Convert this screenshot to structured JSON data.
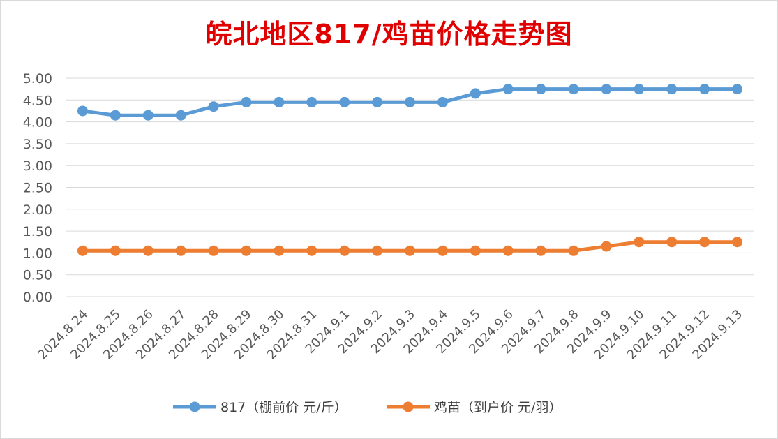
{
  "chart_data": {
    "type": "line",
    "title": "皖北地区817/鸡苗价格走势图",
    "xlabel": "",
    "ylabel": "",
    "ylim": [
      0,
      5
    ],
    "yticks": [
      "0.00",
      "0.50",
      "1.00",
      "1.50",
      "2.00",
      "2.50",
      "3.00",
      "3.50",
      "4.00",
      "4.50",
      "5.00"
    ],
    "grid": true,
    "legend_position": "bottom",
    "categories": [
      "2024.8.24",
      "2024.8.25",
      "2024.8.26",
      "2024.8.27",
      "2024.8.28",
      "2024.8.29",
      "2024.8.30",
      "2024.8.31",
      "2024.9.1",
      "2024.9.2",
      "2024.9.3",
      "2024.9.4",
      "2024.9.5",
      "2024.9.6",
      "2024.9.7",
      "2024.9.8",
      "2024.9.9",
      "2024.9.10",
      "2024.9.11",
      "2024.9.12",
      "2024.9.13"
    ],
    "series": [
      {
        "name": "817（棚前价 元/斤）",
        "color": "#5b9bd5",
        "values": [
          4.25,
          4.15,
          4.15,
          4.15,
          4.35,
          4.45,
          4.45,
          4.45,
          4.45,
          4.45,
          4.45,
          4.45,
          4.65,
          4.75,
          4.75,
          4.75,
          4.75,
          4.75,
          4.75,
          4.75,
          4.75
        ]
      },
      {
        "name": "鸡苗（到户价 元/羽）",
        "color": "#ed7d31",
        "values": [
          1.05,
          1.05,
          1.05,
          1.05,
          1.05,
          1.05,
          1.05,
          1.05,
          1.05,
          1.05,
          1.05,
          1.05,
          1.05,
          1.05,
          1.05,
          1.05,
          1.15,
          1.25,
          1.25,
          1.25,
          1.25
        ]
      }
    ]
  }
}
